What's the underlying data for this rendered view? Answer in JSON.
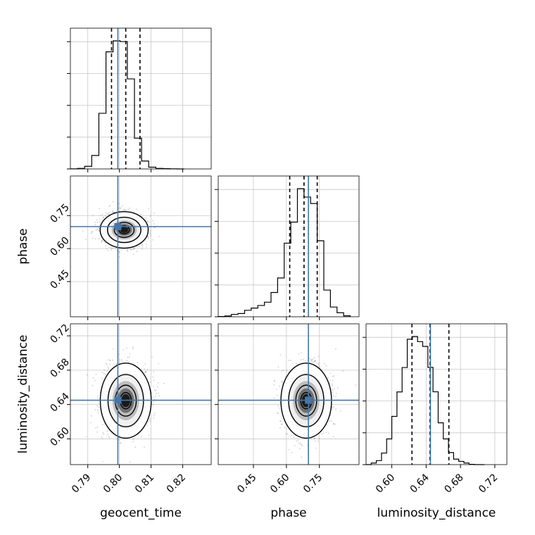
{
  "chart_data": {
    "type": "corner",
    "parameters": [
      "geocent_time",
      "phase",
      "luminosity_distance"
    ],
    "truths": [
      0.7995,
      0.7,
      0.645
    ],
    "truth_color": "#4477aa",
    "grid": true,
    "axis_labels": {
      "x": [
        "geocent_time",
        "phase",
        "luminosity_distance"
      ],
      "y": [
        "phase",
        "luminosity_distance"
      ]
    },
    "ticks": {
      "geocent_time": [
        "0.79",
        "0.80",
        "0.81",
        "0.82"
      ],
      "phase": [
        "0.45",
        "0.60",
        "0.75"
      ],
      "luminosity_distance": [
        "0.60",
        "0.64",
        "0.68",
        "0.72"
      ]
    },
    "histograms": [
      {
        "parameter": "geocent_time",
        "range": [
          0.7845,
          0.829
        ],
        "edges": [
          0.7845,
          0.78675,
          0.789,
          0.79125,
          0.7935,
          0.79575,
          0.798,
          0.80025,
          0.8025,
          0.80475,
          0.807,
          0.80925,
          0.8115,
          0.81375,
          0.816,
          0.81825,
          0.8205
        ],
        "counts": [
          1,
          4,
          18,
          92,
          380,
          800,
          875,
          870,
          615,
          210,
          54,
          12,
          4,
          2,
          1,
          0
        ],
        "quantiles": [
          0.7975,
          0.802,
          0.8065
        ]
      },
      {
        "parameter": "phase",
        "range": [
          0.29,
          0.93
        ],
        "edges": [
          0.29,
          0.32,
          0.35,
          0.38,
          0.41,
          0.44,
          0.47,
          0.5,
          0.53,
          0.56,
          0.59,
          0.62,
          0.65,
          0.68,
          0.71,
          0.74,
          0.77,
          0.8,
          0.83,
          0.86,
          0.89
        ],
        "counts": [
          2,
          5,
          15,
          20,
          40,
          54,
          70,
          90,
          150,
          240,
          455,
          585,
          792,
          740,
          700,
          470,
          165,
          60,
          25,
          6
        ],
        "quantiles": [
          0.615,
          0.68,
          0.74
        ]
      },
      {
        "parameter": "luminosity_distance",
        "range": [
          0.57,
          0.734
        ],
        "edges": [
          0.57,
          0.576,
          0.582,
          0.588,
          0.594,
          0.6,
          0.606,
          0.612,
          0.618,
          0.624,
          0.63,
          0.636,
          0.642,
          0.648,
          0.654,
          0.66,
          0.666,
          0.672,
          0.678,
          0.684,
          0.69,
          0.696,
          0.702,
          0.708
        ],
        "counts": [
          0,
          10,
          25,
          72,
          160,
          300,
          452,
          604,
          780,
          797,
          765,
          735,
          605,
          453,
          260,
          160,
          75,
          34,
          20,
          10,
          2,
          0,
          0
        ],
        "quantiles": [
          0.6235,
          0.6445,
          0.6665
        ]
      }
    ],
    "density_panels": [
      {
        "x": "geocent_time",
        "y": "phase",
        "center": [
          0.8015,
          0.685
        ],
        "spread": [
          0.0033,
          0.036
        ]
      },
      {
        "x": "geocent_time",
        "y": "luminosity_distance",
        "center": [
          0.802,
          0.6445
        ],
        "spread": [
          0.0035,
          0.019
        ]
      },
      {
        "x": "phase",
        "y": "luminosity_distance",
        "center": [
          0.69,
          0.6445
        ],
        "spread": [
          0.05,
          0.019
        ]
      }
    ]
  }
}
